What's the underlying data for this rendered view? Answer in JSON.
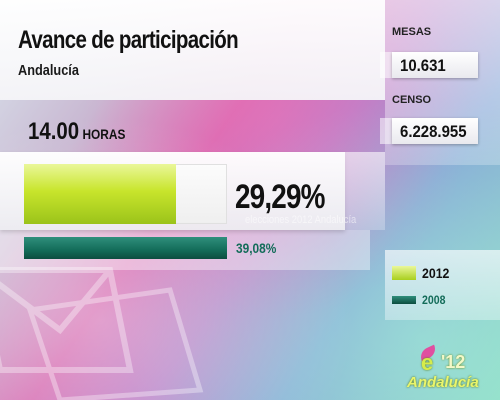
{
  "header": {
    "title": "Avance de participación",
    "region": "Andalucía"
  },
  "stats": {
    "mesas_label": "MESAS",
    "mesas_value": "10.631",
    "censo_label": "CENSO",
    "censo_value": "6.228.955"
  },
  "time": {
    "hour": "14.00",
    "unit": "HORAS"
  },
  "watermark": "elecciones 2012 Andalucía",
  "chart_data": {
    "type": "bar",
    "orientation": "horizontal",
    "title": "Avance de participación",
    "subtitle": "Andalucía",
    "categories": [
      "2012",
      "2008"
    ],
    "values": [
      29.29,
      39.08
    ],
    "value_labels": [
      "29,29%",
      "39,08%"
    ],
    "xlim": [
      0,
      50
    ],
    "legend": [
      {
        "name": "2012",
        "color": "#c8e52c"
      },
      {
        "name": "2008",
        "color": "#136c59"
      }
    ],
    "legend_position": "right"
  },
  "logo": {
    "mark": "e",
    "year": "'12",
    "region": "Andalucía"
  },
  "colors": {
    "accent_2012": "#c8e52c",
    "accent_2008": "#136c59"
  }
}
